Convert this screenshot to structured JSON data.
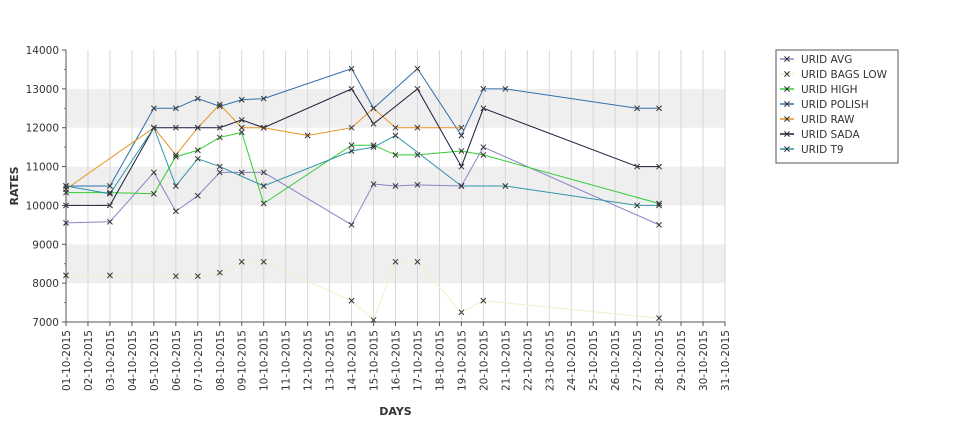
{
  "chart_data": {
    "type": "line",
    "title": "",
    "xlabel": "DAYS",
    "ylabel": "RATES",
    "ylim": [
      7000,
      14000
    ],
    "yticks": [
      7000,
      8000,
      9000,
      10000,
      11000,
      12000,
      13000,
      14000
    ],
    "grid": "alternating horizontal bands",
    "legend_position": "top-right",
    "categories": [
      "01-10-2015",
      "02-10-2015",
      "03-10-2015",
      "04-10-2015",
      "05-10-2015",
      "06-10-2015",
      "07-10-2015",
      "08-10-2015",
      "09-10-2015",
      "10-10-2015",
      "11-10-2015",
      "12-10-2015",
      "13-10-2015",
      "14-10-2015",
      "15-10-2015",
      "16-10-2015",
      "17-10-2015",
      "18-10-2015",
      "19-10-2015",
      "20-10-2015",
      "21-10-2015",
      "22-10-2015",
      "23-10-2015",
      "24-10-2015",
      "25-10-2015",
      "26-10-2015",
      "27-10-2015",
      "28-10-2015",
      "29-10-2015",
      "30-10-2015",
      "31-10-2015"
    ],
    "series": [
      {
        "name": "URID AVG",
        "color": "#8c84c8",
        "points": [
          [
            "01-10-2015",
            9550
          ],
          [
            "03-10-2015",
            9580
          ],
          [
            "05-10-2015",
            10850
          ],
          [
            "06-10-2015",
            9850
          ],
          [
            "07-10-2015",
            10250
          ],
          [
            "08-10-2015",
            10850
          ],
          [
            "09-10-2015",
            10850
          ],
          [
            "10-10-2015",
            10850
          ],
          [
            "14-10-2015",
            9500
          ],
          [
            "15-10-2015",
            10550
          ],
          [
            "16-10-2015",
            10500
          ],
          [
            "17-10-2015",
            10530
          ],
          [
            "19-10-2015",
            10500
          ],
          [
            "20-10-2015",
            11500
          ],
          [
            "28-10-2015",
            9500
          ]
        ]
      },
      {
        "name": "URID BAGS LOW",
        "color": "#f3f0c6",
        "points": [
          [
            "01-10-2015",
            8200
          ],
          [
            "03-10-2015",
            8200
          ],
          [
            "06-10-2015",
            8180
          ],
          [
            "07-10-2015",
            8180
          ],
          [
            "08-10-2015",
            8270
          ],
          [
            "09-10-2015",
            8550
          ],
          [
            "10-10-2015",
            8550
          ],
          [
            "14-10-2015",
            7550
          ],
          [
            "15-10-2015",
            7050
          ],
          [
            "16-10-2015",
            8550
          ],
          [
            "17-10-2015",
            8550
          ],
          [
            "19-10-2015",
            7250
          ],
          [
            "20-10-2015",
            7550
          ],
          [
            "28-10-2015",
            7100
          ]
        ]
      },
      {
        "name": "URID HIGH",
        "color": "#33cc33",
        "points": [
          [
            "01-10-2015",
            10330
          ],
          [
            "03-10-2015",
            10330
          ],
          [
            "05-10-2015",
            10300
          ],
          [
            "06-10-2015",
            11250
          ],
          [
            "07-10-2015",
            11420
          ],
          [
            "08-10-2015",
            11750
          ],
          [
            "09-10-2015",
            11880
          ],
          [
            "10-10-2015",
            10050
          ],
          [
            "14-10-2015",
            11550
          ],
          [
            "15-10-2015",
            11550
          ],
          [
            "16-10-2015",
            11300
          ],
          [
            "17-10-2015",
            11300
          ],
          [
            "19-10-2015",
            11400
          ],
          [
            "20-10-2015",
            11300
          ],
          [
            "28-10-2015",
            10050
          ]
        ]
      },
      {
        "name": "URID POLISH",
        "color": "#2e6fad",
        "points": [
          [
            "01-10-2015",
            10500
          ],
          [
            "03-10-2015",
            10500
          ],
          [
            "05-10-2015",
            12500
          ],
          [
            "06-10-2015",
            12500
          ],
          [
            "07-10-2015",
            12750
          ],
          [
            "08-10-2015",
            12550
          ],
          [
            "09-10-2015",
            12720
          ],
          [
            "10-10-2015",
            12750
          ],
          [
            "14-10-2015",
            13520
          ],
          [
            "15-10-2015",
            12500
          ],
          [
            "17-10-2015",
            13520
          ],
          [
            "19-10-2015",
            11800
          ],
          [
            "20-10-2015",
            13000
          ],
          [
            "21-10-2015",
            13000
          ],
          [
            "27-10-2015",
            12500
          ],
          [
            "28-10-2015",
            12500
          ]
        ]
      },
      {
        "name": "URID RAW",
        "color": "#e89420",
        "points": [
          [
            "01-10-2015",
            10420
          ],
          [
            "05-10-2015",
            12000
          ],
          [
            "06-10-2015",
            11300
          ],
          [
            "07-10-2015",
            12000
          ],
          [
            "08-10-2015",
            12600
          ],
          [
            "09-10-2015",
            12000
          ],
          [
            "10-10-2015",
            12000
          ],
          [
            "12-10-2015",
            11800
          ],
          [
            "14-10-2015",
            12000
          ],
          [
            "15-10-2015",
            12500
          ],
          [
            "16-10-2015",
            12000
          ],
          [
            "17-10-2015",
            12000
          ],
          [
            "19-10-2015",
            12000
          ]
        ]
      },
      {
        "name": "URID SADA",
        "color": "#1a1a3a",
        "points": [
          [
            "01-10-2015",
            10000
          ],
          [
            "03-10-2015",
            10000
          ],
          [
            "05-10-2015",
            12000
          ],
          [
            "06-10-2015",
            12000
          ],
          [
            "07-10-2015",
            12000
          ],
          [
            "08-10-2015",
            12000
          ],
          [
            "09-10-2015",
            12200
          ],
          [
            "10-10-2015",
            12000
          ],
          [
            "14-10-2015",
            13000
          ],
          [
            "15-10-2015",
            12100
          ],
          [
            "17-10-2015",
            13000
          ],
          [
            "19-10-2015",
            11000
          ],
          [
            "20-10-2015",
            12500
          ],
          [
            "27-10-2015",
            11000
          ],
          [
            "28-10-2015",
            11000
          ]
        ]
      },
      {
        "name": "URID T9",
        "color": "#2e96a8",
        "points": [
          [
            "01-10-2015",
            10500
          ],
          [
            "03-10-2015",
            10300
          ],
          [
            "05-10-2015",
            12000
          ],
          [
            "06-10-2015",
            10500
          ],
          [
            "07-10-2015",
            11200
          ],
          [
            "08-10-2015",
            11000
          ],
          [
            "10-10-2015",
            10500
          ],
          [
            "14-10-2015",
            11400
          ],
          [
            "15-10-2015",
            11500
          ],
          [
            "16-10-2015",
            11800
          ],
          [
            "19-10-2015",
            10500
          ],
          [
            "21-10-2015",
            10500
          ],
          [
            "27-10-2015",
            10000
          ],
          [
            "28-10-2015",
            10000
          ]
        ]
      }
    ]
  }
}
